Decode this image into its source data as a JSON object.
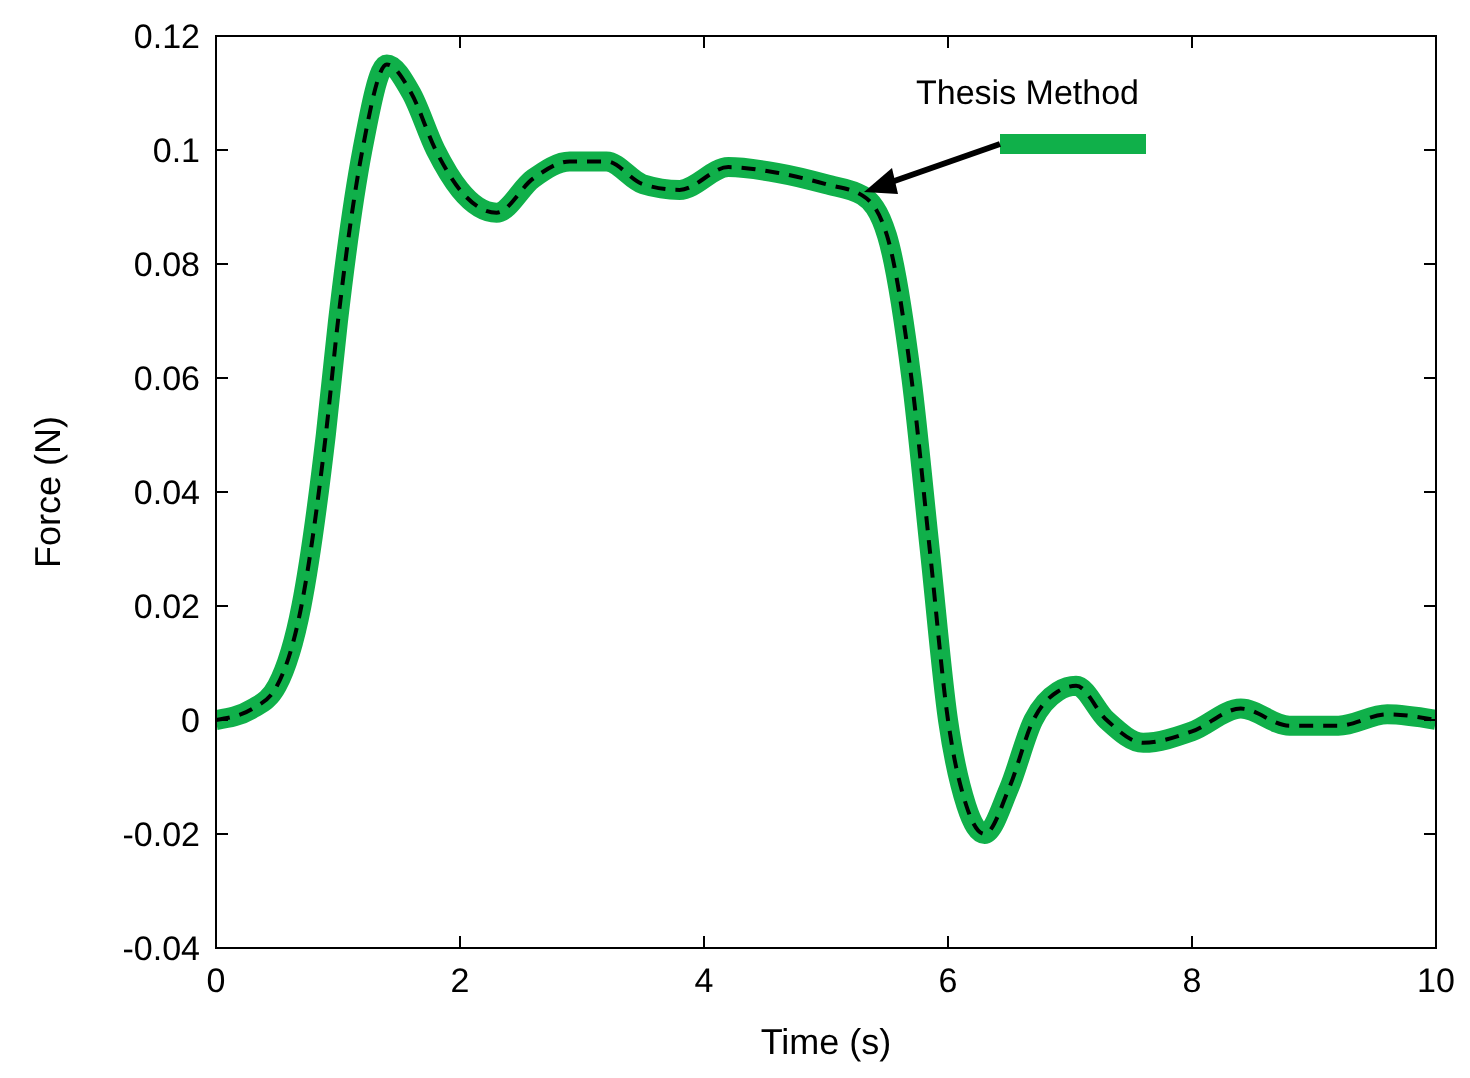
{
  "chart_data": {
    "type": "line",
    "xlabel": "Time (s)",
    "ylabel": "Force (N)",
    "xlim": [
      0,
      10
    ],
    "ylim": [
      -0.04,
      0.12
    ],
    "xticks": [
      0,
      2,
      4,
      6,
      8,
      10
    ],
    "yticks": [
      -0.04,
      -0.02,
      0,
      0.02,
      0.04,
      0.06,
      0.08,
      0.1,
      0.12
    ],
    "grid": false,
    "legend": "top right",
    "x": [
      0,
      0.3,
      0.5,
      0.7,
      0.9,
      1.0,
      1.2,
      1.4,
      1.6,
      1.8,
      2.0,
      2.3,
      2.6,
      2.9,
      3.2,
      3.5,
      3.8,
      4.2,
      4.6,
      5.0,
      5.3,
      5.5,
      5.7,
      5.85,
      6.0,
      6.15,
      6.3,
      6.5,
      6.7,
      6.9,
      7.05,
      7.3,
      7.6,
      8.0,
      8.4,
      8.8,
      9.2,
      9.6,
      10
    ],
    "series": [
      {
        "name": "Thesis Method",
        "color": "#10b04a",
        "line_style": "solid",
        "values": [
          0,
          0.002,
          0.006,
          0.02,
          0.05,
          0.07,
          0.1,
          0.115,
          0.11,
          0.1,
          0.093,
          0.089,
          0.095,
          0.098,
          0.098,
          0.094,
          0.093,
          0.097,
          0.096,
          0.094,
          0.092,
          0.085,
          0.06,
          0.03,
          0,
          -0.015,
          -0.02,
          -0.012,
          0,
          0.005,
          0.006,
          0,
          -0.004,
          -0.002,
          0.002,
          -0.001,
          -0.001,
          0.001,
          0
        ]
      },
      {
        "color": "#000000",
        "line_style": "dashed",
        "values": [
          0,
          0.002,
          0.006,
          0.02,
          0.05,
          0.07,
          0.1,
          0.115,
          0.11,
          0.1,
          0.093,
          0.089,
          0.095,
          0.098,
          0.098,
          0.094,
          0.093,
          0.097,
          0.096,
          0.094,
          0.092,
          0.085,
          0.06,
          0.03,
          0,
          -0.015,
          -0.02,
          -0.012,
          0,
          0.005,
          0.006,
          0,
          -0.004,
          -0.002,
          0.002,
          -0.001,
          -0.001,
          0.001,
          0
        ]
      }
    ]
  }
}
